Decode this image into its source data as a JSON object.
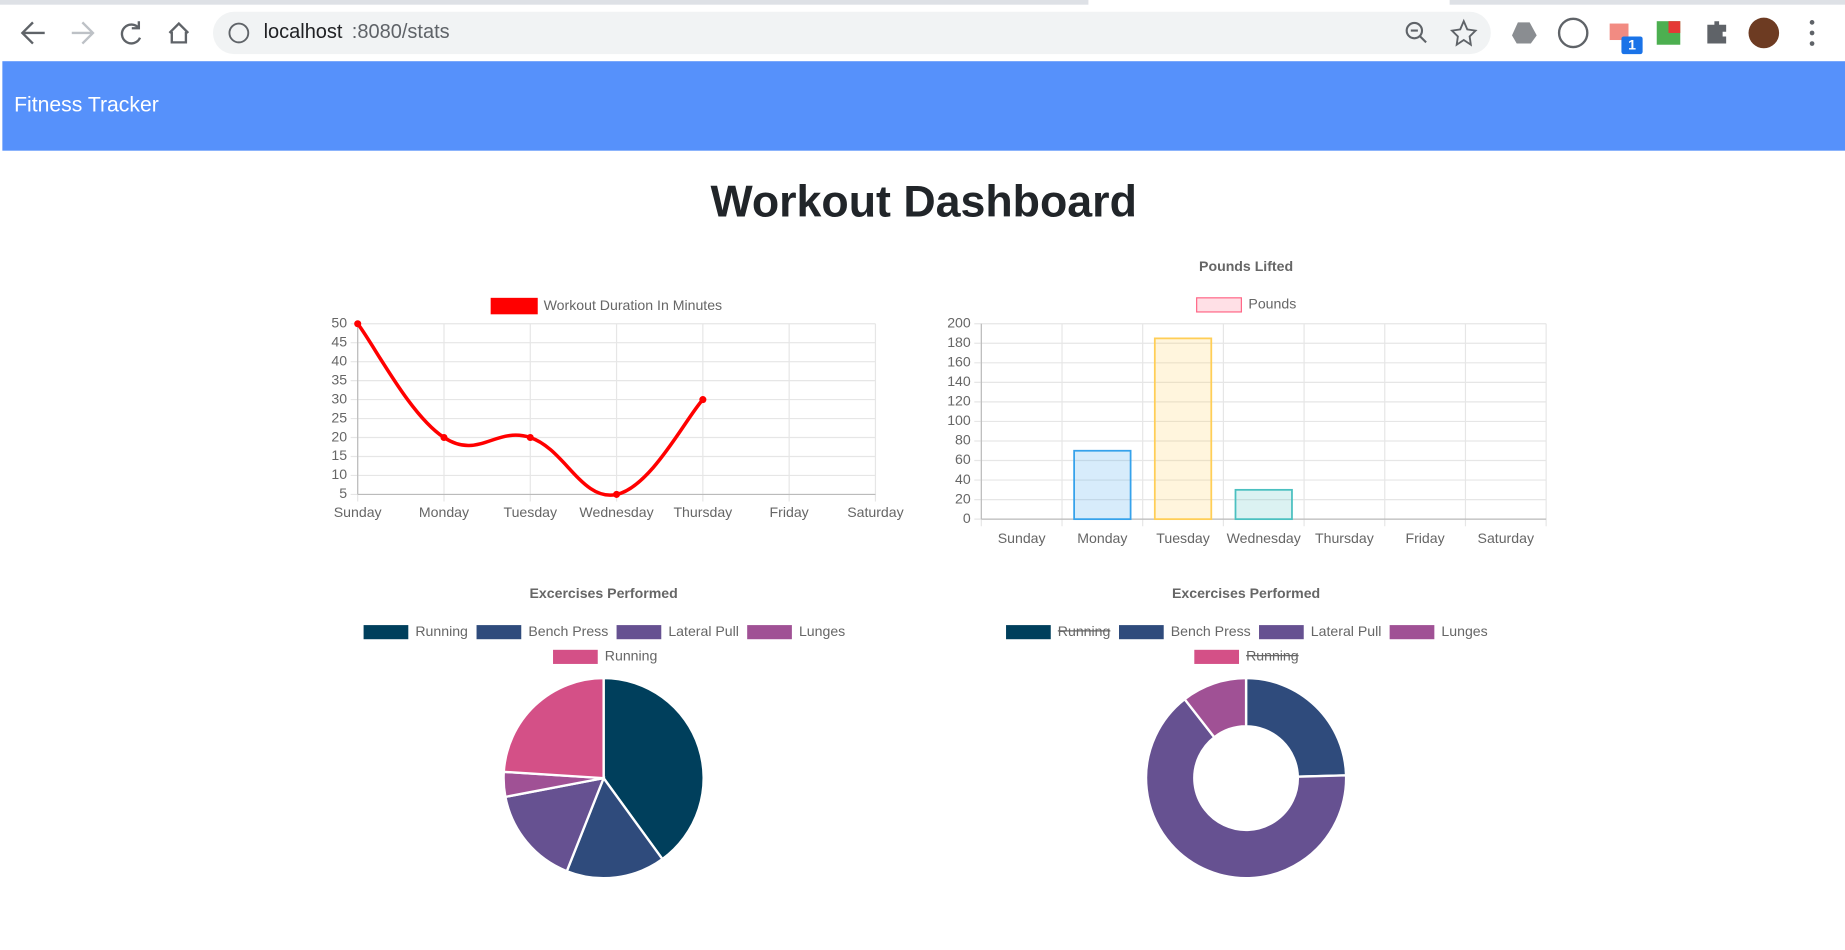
{
  "browser": {
    "url_host": "localhost",
    "url_path": ":8080/stats",
    "extension_badge": "1"
  },
  "navbar": {
    "brand": "Fitness Tracker"
  },
  "heading": "Workout Dashboard",
  "chart_data": [
    {
      "type": "line",
      "categories": [
        "Sunday",
        "Monday",
        "Tuesday",
        "Wednesday",
        "Thursday",
        "Friday",
        "Saturday"
      ],
      "series": [
        {
          "name": "Workout Duration In Minutes",
          "color": "#ff0000",
          "values": [
            50,
            20,
            20,
            5,
            30,
            null,
            null
          ]
        }
      ],
      "ylim": [
        5,
        50
      ],
      "yticks": [
        5,
        10,
        15,
        20,
        25,
        30,
        35,
        40,
        45,
        50
      ],
      "grid": true,
      "legend": "top"
    },
    {
      "type": "bar",
      "title": "Pounds Lifted",
      "categories": [
        "Sunday",
        "Monday",
        "Tuesday",
        "Wednesday",
        "Thursday",
        "Friday",
        "Saturday"
      ],
      "series": [
        {
          "name": "Pounds",
          "colors": [
            "#ff6384",
            "#36a2eb",
            "#ffce56",
            "#4bc0c0",
            "#9966ff",
            "#ff9f40",
            "#ff6384"
          ],
          "values": [
            null,
            70,
            185,
            30,
            null,
            null,
            null
          ]
        }
      ],
      "ylim": [
        0,
        200
      ],
      "yticks": [
        0,
        20,
        40,
        60,
        80,
        100,
        120,
        140,
        160,
        180,
        200
      ],
      "grid": true,
      "legend": "top"
    },
    {
      "type": "pie",
      "title": "Excercises Performed",
      "labels": [
        "Running",
        "Bench Press",
        "Lateral Pull",
        "Lunges",
        "Running"
      ],
      "values": [
        50,
        20,
        20,
        5,
        30
      ],
      "colors": [
        "#003f5c",
        "#2f4b7c",
        "#665191",
        "#a05195",
        "#d45087"
      ],
      "legend": "top"
    },
    {
      "type": "doughnut",
      "title": "Excercises Performed",
      "labels": [
        "Running",
        "Bench Press",
        "Lateral Pull",
        "Lunges",
        "Running"
      ],
      "values": [
        0,
        70,
        185,
        30,
        0
      ],
      "hidden": [
        true,
        false,
        false,
        false,
        true
      ],
      "colors": [
        "#003f5c",
        "#2f4b7c",
        "#665191",
        "#a05195",
        "#d45087"
      ],
      "legend": "top"
    }
  ]
}
